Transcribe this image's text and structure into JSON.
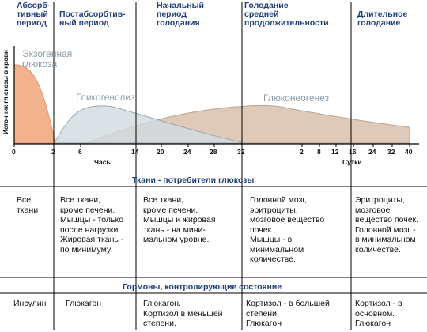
{
  "phases": [
    "Абсорб-\nтивный\nпериод",
    "Постабсорбтив-\nный период",
    "Начальный\nпериод\nголодания",
    "Голодание\nсредней\nпродолжительности",
    "Длительное\nголодание"
  ],
  "y_axis_label": "Источник глюкозы в крови",
  "areas": {
    "exogenous": "Экзогенная\nглюкоза",
    "glycogenolysis": "Гликогенолиз",
    "gluconeogenesis": "Глюконеогенез"
  },
  "x_axis": {
    "ticks": [
      "0",
      "2",
      "6",
      "14",
      "20",
      "24",
      "28",
      "32",
      "2",
      "8",
      "12",
      "16",
      "24",
      "32",
      "40"
    ],
    "unit_hours": "Часы",
    "unit_days": "Сутки"
  },
  "colors": {
    "exogenous": "#f2b28e",
    "glycogenolysis": "#d2dbe0",
    "gluconeogenesis": "#dfc9b8",
    "heading": "#1f3f7a"
  },
  "consumers": {
    "title": "Ткани - потребители глюкозы",
    "cells": [
      "Все\nткани",
      "Все ткани,\nкроме печени.\nМышцы - только\nпосле нагрузки.\nЖировая ткань -\nпо минимуму.",
      "Все ткани,\nкроме печени.\nМышцы и жировая\nткань - на мини-\nмальном уровне.",
      "Головной мозг,\nэритроциты,\nмозговое вещество\nпочек.\nМышцы - в\nминимальном\nколичестве.",
      "Эритроциты,\nмозговое\nвещество почек.\nГоловной мозг -\nв минимальном\nколичестве."
    ]
  },
  "hormones": {
    "title": "Гормоны, контролирующие состояние",
    "cells": [
      "Инсулин",
      "Глюкагон",
      "Глюкагон.\nКортизол в меньшей\nстепени.",
      "Кортизол - в большей\nстепени.\nГлюкагон",
      "Кортизол - в\nосновном.\nГлюкагон"
    ]
  }
}
